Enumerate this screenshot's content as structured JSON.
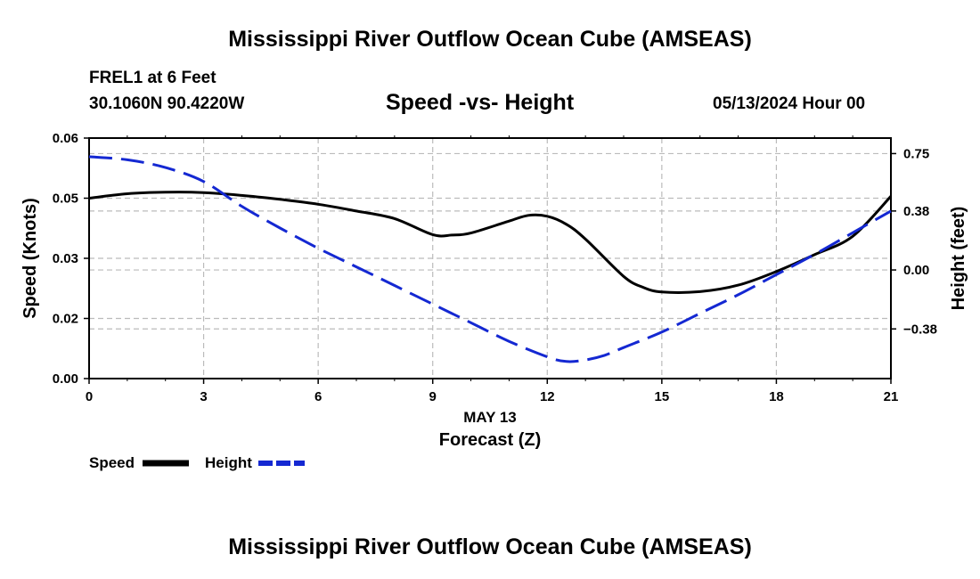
{
  "page": {
    "title_top": "Mississippi River Outflow Ocean Cube (AMSEAS)",
    "title_bottom": "Mississippi River Outflow Ocean Cube (AMSEAS)",
    "station_line": "FREL1 at 6 Feet",
    "coords_line": "30.1060N  90.4220W",
    "subtitle": "Speed -vs- Height",
    "datetime": "05/13/2024 Hour 00"
  },
  "chart_data": {
    "type": "line",
    "title": "Speed -vs- Height",
    "xlabel": "Forecast (Z)",
    "xlabel_date": "MAY 13",
    "ylabel": "Speed (Knots)",
    "y2label": "Height (feet)",
    "xlim": [
      0,
      21
    ],
    "ylim": [
      0,
      0.06
    ],
    "y2lim": [
      -0.7,
      0.85
    ],
    "x_ticks": [
      0,
      3,
      6,
      9,
      12,
      15,
      18,
      21
    ],
    "x_tick_labels": [
      "0",
      "3",
      "6",
      "9",
      "12",
      "15",
      "18",
      "21"
    ],
    "y_ticks": [
      0,
      0.015,
      0.03,
      0.045,
      0.06
    ],
    "y_tick_labels": [
      "0.00",
      "0.02",
      "0.03",
      "0.05",
      "0.06"
    ],
    "y2_ticks": [
      -0.38,
      0,
      0.38,
      0.75
    ],
    "y2_tick_labels": [
      "−0.38",
      "0.00",
      "0.38",
      "0.75"
    ],
    "grid": true,
    "legend": "bottom-left",
    "series": [
      {
        "name": "Speed",
        "axis": "left",
        "color": "#000000",
        "style": "solid",
        "x": [
          0,
          1,
          2,
          3,
          4,
          5,
          6,
          7,
          8,
          9,
          9.5,
          10,
          11,
          11.5,
          12,
          12.5,
          13,
          14,
          14.5,
          15,
          16,
          17,
          18,
          19,
          20,
          21
        ],
        "values": [
          0.045,
          0.0461,
          0.0465,
          0.0464,
          0.0457,
          0.0447,
          0.0435,
          0.0418,
          0.0399,
          0.0359,
          0.0358,
          0.0363,
          0.0393,
          0.0407,
          0.0405,
          0.0385,
          0.0348,
          0.0255,
          0.0228,
          0.0216,
          0.0217,
          0.0233,
          0.0267,
          0.0309,
          0.0355,
          0.0455
        ]
      },
      {
        "name": "Height",
        "axis": "right",
        "color": "#1428d2",
        "style": "dashed",
        "x": [
          0,
          1,
          2,
          3,
          4,
          5,
          6,
          7,
          8,
          9,
          10,
          11,
          12,
          12.5,
          13,
          13.5,
          14,
          15,
          16,
          17,
          18,
          19,
          20,
          21
        ],
        "values": [
          0.73,
          0.71,
          0.66,
          0.57,
          0.41,
          0.27,
          0.14,
          0.02,
          -0.1,
          -0.22,
          -0.34,
          -0.46,
          -0.56,
          -0.59,
          -0.58,
          -0.55,
          -0.5,
          -0.4,
          -0.28,
          -0.16,
          -0.03,
          0.1,
          0.24,
          0.38
        ]
      }
    ]
  }
}
